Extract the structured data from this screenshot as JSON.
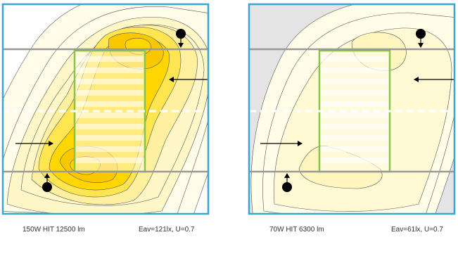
{
  "panels": [
    {
      "id": "left",
      "lamp_label": "150W HIT 12500 lm",
      "result_label": "Eav=121lx, U=0.7",
      "colors": {
        "background": "#ffffff",
        "zone_ring_1": "#fffde9",
        "zone_ring_2": "#fff7c8",
        "zone_ring_3": "#fff0a0",
        "zone_ring_4": "#ffe550",
        "zone_ring_5": "#ffd600",
        "zone_peak": "#fbc800",
        "frame": "#39a6d2",
        "court": "#8bc34a"
      }
    },
    {
      "id": "right",
      "lamp_label": "70W HIT 6300 lm",
      "result_label": "Eav=61lx, U=0.7",
      "colors": {
        "background": "#e4e4e4",
        "zone_ring_1": "#fffce8",
        "zone_ring_2": "#fffad4",
        "zone_ring_3": "#fff5bf",
        "frame": "#39a6d2",
        "court": "#8bc34a"
      }
    }
  ],
  "common": {
    "mast_line_color": "#999999",
    "dashed_center_color": "#ffffff",
    "contour_color": "#555555",
    "lamp_color": "#000000",
    "icon_names": [
      "luminaire-pole-icon",
      "aiming-arrow-icon"
    ]
  }
}
